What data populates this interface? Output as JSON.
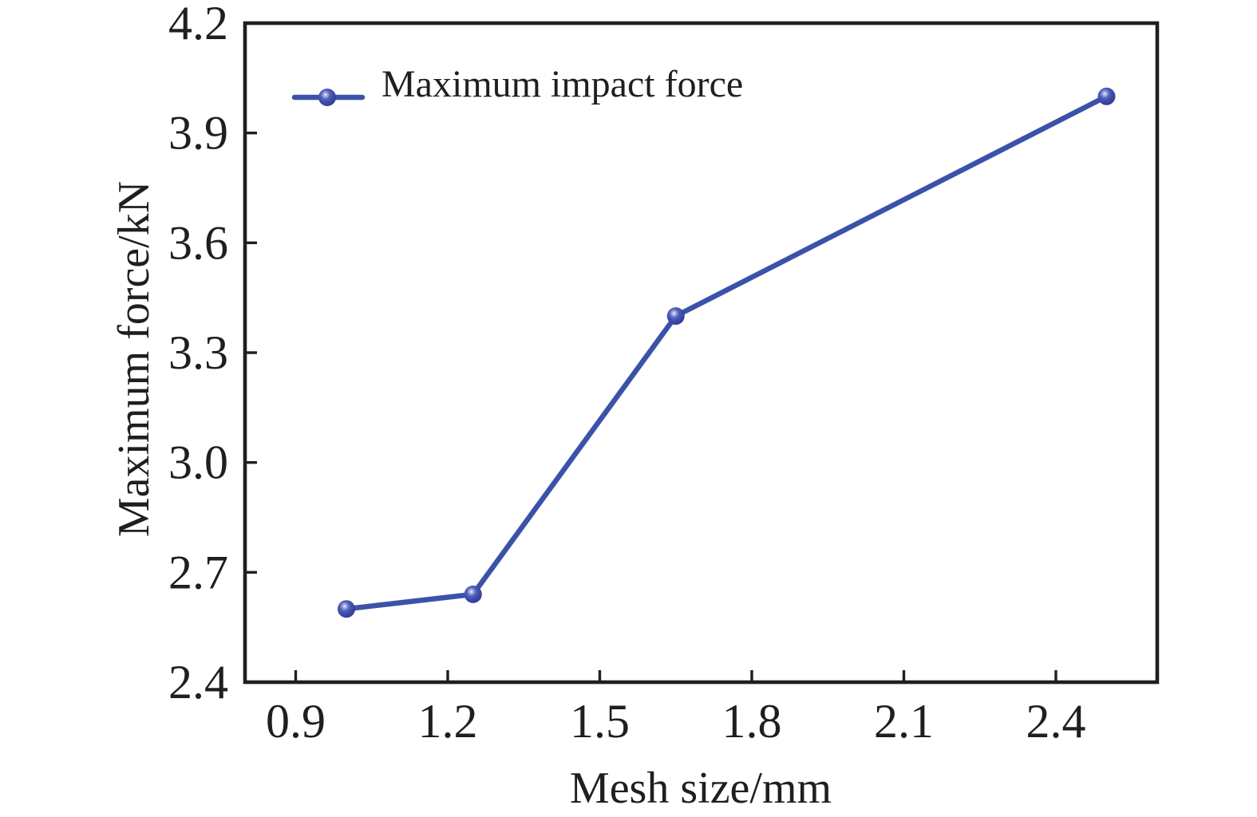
{
  "figure": {
    "background": "#ffffff",
    "axis_color": "#1f1f1f"
  },
  "chart_data": {
    "type": "line",
    "title": "",
    "xlabel": "Mesh size/mm",
    "ylabel": "Maximum force/kN",
    "series": [
      {
        "name": "Maximum impact force",
        "x": [
          1.0,
          1.25,
          1.65,
          2.5
        ],
        "y": [
          2.6,
          2.64,
          3.4,
          4.0
        ],
        "color": "#3a52a8",
        "marker": "ball",
        "marker_highlight": "#f0f1fd",
        "marker_edge": "#2e3a92",
        "line_width": 6.5,
        "marker_radius": 11
      }
    ],
    "xlim": [
      0.8,
      2.6
    ],
    "ylim": [
      2.4,
      4.2
    ],
    "xticks": [
      0.9,
      1.2,
      1.5,
      1.8,
      2.1,
      2.4
    ],
    "yticks": [
      2.4,
      2.7,
      3.0,
      3.3,
      3.6,
      3.9,
      4.2
    ],
    "xtick_labels": [
      "0.9",
      "1.2",
      "1.5",
      "1.8",
      "2.1",
      "2.4"
    ],
    "ytick_labels": [
      "2.4",
      "2.7",
      "3.0",
      "3.3",
      "3.6",
      "3.9",
      "4.2"
    ],
    "grid": false,
    "legend_position": "top-left-inside",
    "legend_entries": [
      "Maximum impact force"
    ]
  }
}
